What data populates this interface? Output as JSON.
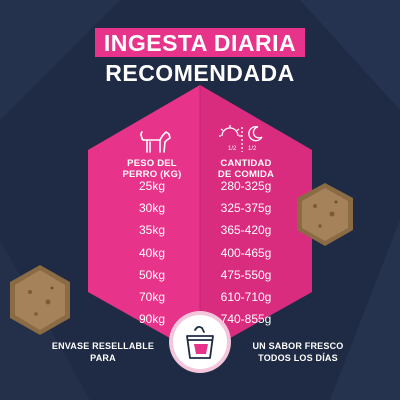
{
  "title": {
    "line1": "INGESTA DIARIA",
    "line2": "RECOMENDADA"
  },
  "colors": {
    "background": "#1f2b44",
    "accent_pink": "#e8338a",
    "hexagon_left": "#e8338a",
    "hexagon_right": "#d92c7f",
    "badge_bg": "#f4c6dc"
  },
  "columns": {
    "weight": {
      "icon": "dog-icon",
      "header_line1": "PESO DEL",
      "header_line2": "PERRO (KG)",
      "values": [
        "25kg",
        "30kg",
        "35kg",
        "40kg",
        "50kg",
        "70kg",
        "90kg"
      ]
    },
    "portion": {
      "icon": "day-night-icon",
      "icon_fraction_left": "1/2",
      "icon_fraction_right": "1/2",
      "header_line1": "CANTIDAD",
      "header_line2": "DE COMIDA",
      "values": [
        "280-325g",
        "325-375g",
        "365-420g",
        "400-465g",
        "475-550g",
        "610-710g",
        "740-855g"
      ]
    }
  },
  "bottom": {
    "left_line1": "ENVASE RESELLABLE",
    "left_line2": "PARA",
    "right_line1": "UN SABOR FRESCO",
    "right_line2": "TODOS LOS DÍAS",
    "badge_icon": "resealable-bag-icon"
  }
}
